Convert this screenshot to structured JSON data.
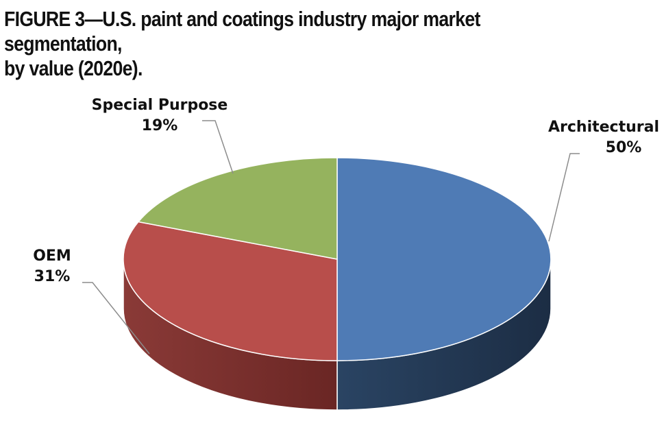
{
  "figure": {
    "title_line1": "FIGURE 3—U.S. paint and coatings industry major market segmentation,",
    "title_line2": "by value (2020e)."
  },
  "chart_data": {
    "type": "pie",
    "style": "3d",
    "title": "FIGURE 3—U.S. paint and coatings industry major market segmentation, by value (2020e).",
    "categories": [
      "Architectural",
      "OEM",
      "Special Purpose"
    ],
    "values": [
      50,
      31,
      19
    ],
    "value_labels": [
      "50%",
      "31%",
      "19%"
    ],
    "colors": [
      "#4f7bb5",
      "#b84e4b",
      "#95b35e"
    ],
    "side_colors": [
      "#203550",
      "#6e2825",
      "#5c7236"
    ],
    "legend": "none"
  }
}
